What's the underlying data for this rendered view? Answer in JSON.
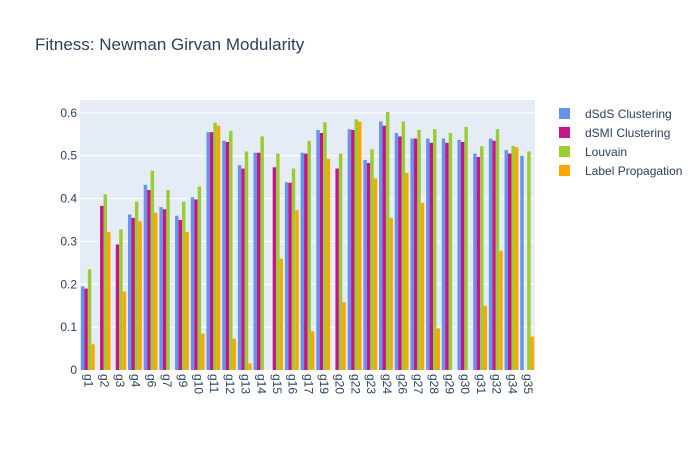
{
  "chart_data": {
    "type": "bar",
    "title": "Fitness: Newman Girvan Modularity",
    "xlabel": "",
    "ylabel": "",
    "ylim": [
      0,
      0.63
    ],
    "yticks": [
      0,
      0.1,
      0.2,
      0.3,
      0.4,
      0.5,
      0.6
    ],
    "ytick_labels": [
      "0",
      "0.1",
      "0.2",
      "0.3",
      "0.4",
      "0.5",
      "0.6"
    ],
    "grid": true,
    "legend_position": "top-right",
    "categories": [
      "g1",
      "g2",
      "g3",
      "g4",
      "g6",
      "g7",
      "g9",
      "g10",
      "g11",
      "g12",
      "g13",
      "g14",
      "g15",
      "g16",
      "g17",
      "g19",
      "g20",
      "g22",
      "g23",
      "g24",
      "g26",
      "g27",
      "g28",
      "g29",
      "g30",
      "g31",
      "g32",
      "g34",
      "g35"
    ],
    "series": [
      {
        "name": "dSdS Clustering",
        "color": "#6495ED",
        "values": [
          0.195,
          0,
          0,
          0.363,
          0.432,
          0.38,
          0.36,
          0.403,
          0.555,
          0.535,
          0.478,
          0.507,
          0,
          0.438,
          0.507,
          0.56,
          0,
          0.562,
          0.49,
          0.58,
          0.553,
          0.54,
          0.54,
          0.54,
          0.537,
          0.505,
          0.54,
          0.513,
          0.5
        ]
      },
      {
        "name": "dSMI Clustering",
        "color": "#C71585",
        "values": [
          0.19,
          0.383,
          0.293,
          0.355,
          0.42,
          0.375,
          0.35,
          0.398,
          0.555,
          0.532,
          0.47,
          0.507,
          0.473,
          0.437,
          0.505,
          0.553,
          0.47,
          0.56,
          0.483,
          0.57,
          0.545,
          0.54,
          0.53,
          0.53,
          0.532,
          0.497,
          0.535,
          0.505,
          0
        ]
      },
      {
        "name": "Louvain",
        "color": "#9ACD32",
        "values": [
          0.235,
          0.41,
          0.328,
          0.393,
          0.465,
          0.42,
          0.393,
          0.428,
          0.577,
          0.558,
          0.51,
          0.545,
          0.505,
          0.47,
          0.535,
          0.578,
          0.505,
          0.585,
          0.515,
          0.602,
          0.58,
          0.56,
          0.562,
          0.553,
          0.567,
          0.522,
          0.562,
          0.523,
          0.51
        ]
      },
      {
        "name": "Label Propagation",
        "color": "#FFA500",
        "values": [
          0.06,
          0.322,
          0.183,
          0.347,
          0.367,
          0,
          0.322,
          0.085,
          0.57,
          0.073,
          0.015,
          0,
          0.26,
          0.373,
          0.09,
          0.493,
          0.158,
          0.58,
          0.447,
          0.355,
          0.46,
          0.39,
          0.097,
          0,
          0,
          0.15,
          0.278,
          0.52,
          0.078
        ]
      }
    ]
  }
}
